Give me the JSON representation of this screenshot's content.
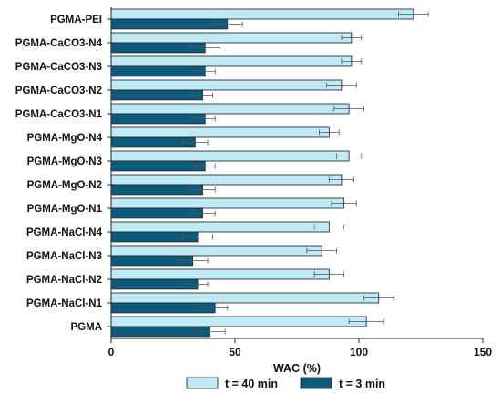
{
  "chart_data": {
    "type": "bar",
    "orientation": "horizontal",
    "categories": [
      "PGMA-PEI",
      "PGMA-CaCO3-N4",
      "PGMA-CaCO3-N3",
      "PGMA-CaCO3-N2",
      "PGMA-CaCO3-N1",
      "PGMA-MgO-N4",
      "PGMA-MgO-N3",
      "PGMA-MgO-N2",
      "PGMA-MgO-N1",
      "PGMA-NaCl-N4",
      "PGMA-NaCl-N3",
      "PGMA-NaCl-N2",
      "PGMA-NaCl-N1",
      "PGMA"
    ],
    "series": [
      {
        "name": "t = 40 min",
        "color": "#bfeaf6",
        "values": [
          122,
          97,
          97,
          93,
          96,
          88,
          96,
          93,
          94,
          88,
          85,
          88,
          108,
          103
        ],
        "errors": [
          6,
          4,
          4,
          6,
          6,
          4,
          5,
          5,
          5,
          6,
          6,
          6,
          6,
          7
        ]
      },
      {
        "name": "t = 3 min",
        "color": "#0e5a7a",
        "values": [
          47,
          38,
          38,
          37,
          38,
          34,
          38,
          37,
          37,
          35,
          33,
          35,
          42,
          40
        ],
        "errors": [
          6,
          6,
          4,
          4,
          4,
          5,
          4,
          5,
          5,
          6,
          6,
          4,
          5,
          6
        ]
      }
    ],
    "xlabel": "WAC (%)",
    "xlim": [
      0,
      150
    ],
    "xticks": [
      "0",
      "50",
      "100",
      "150"
    ],
    "grid": false,
    "legend_position": "bottom"
  }
}
